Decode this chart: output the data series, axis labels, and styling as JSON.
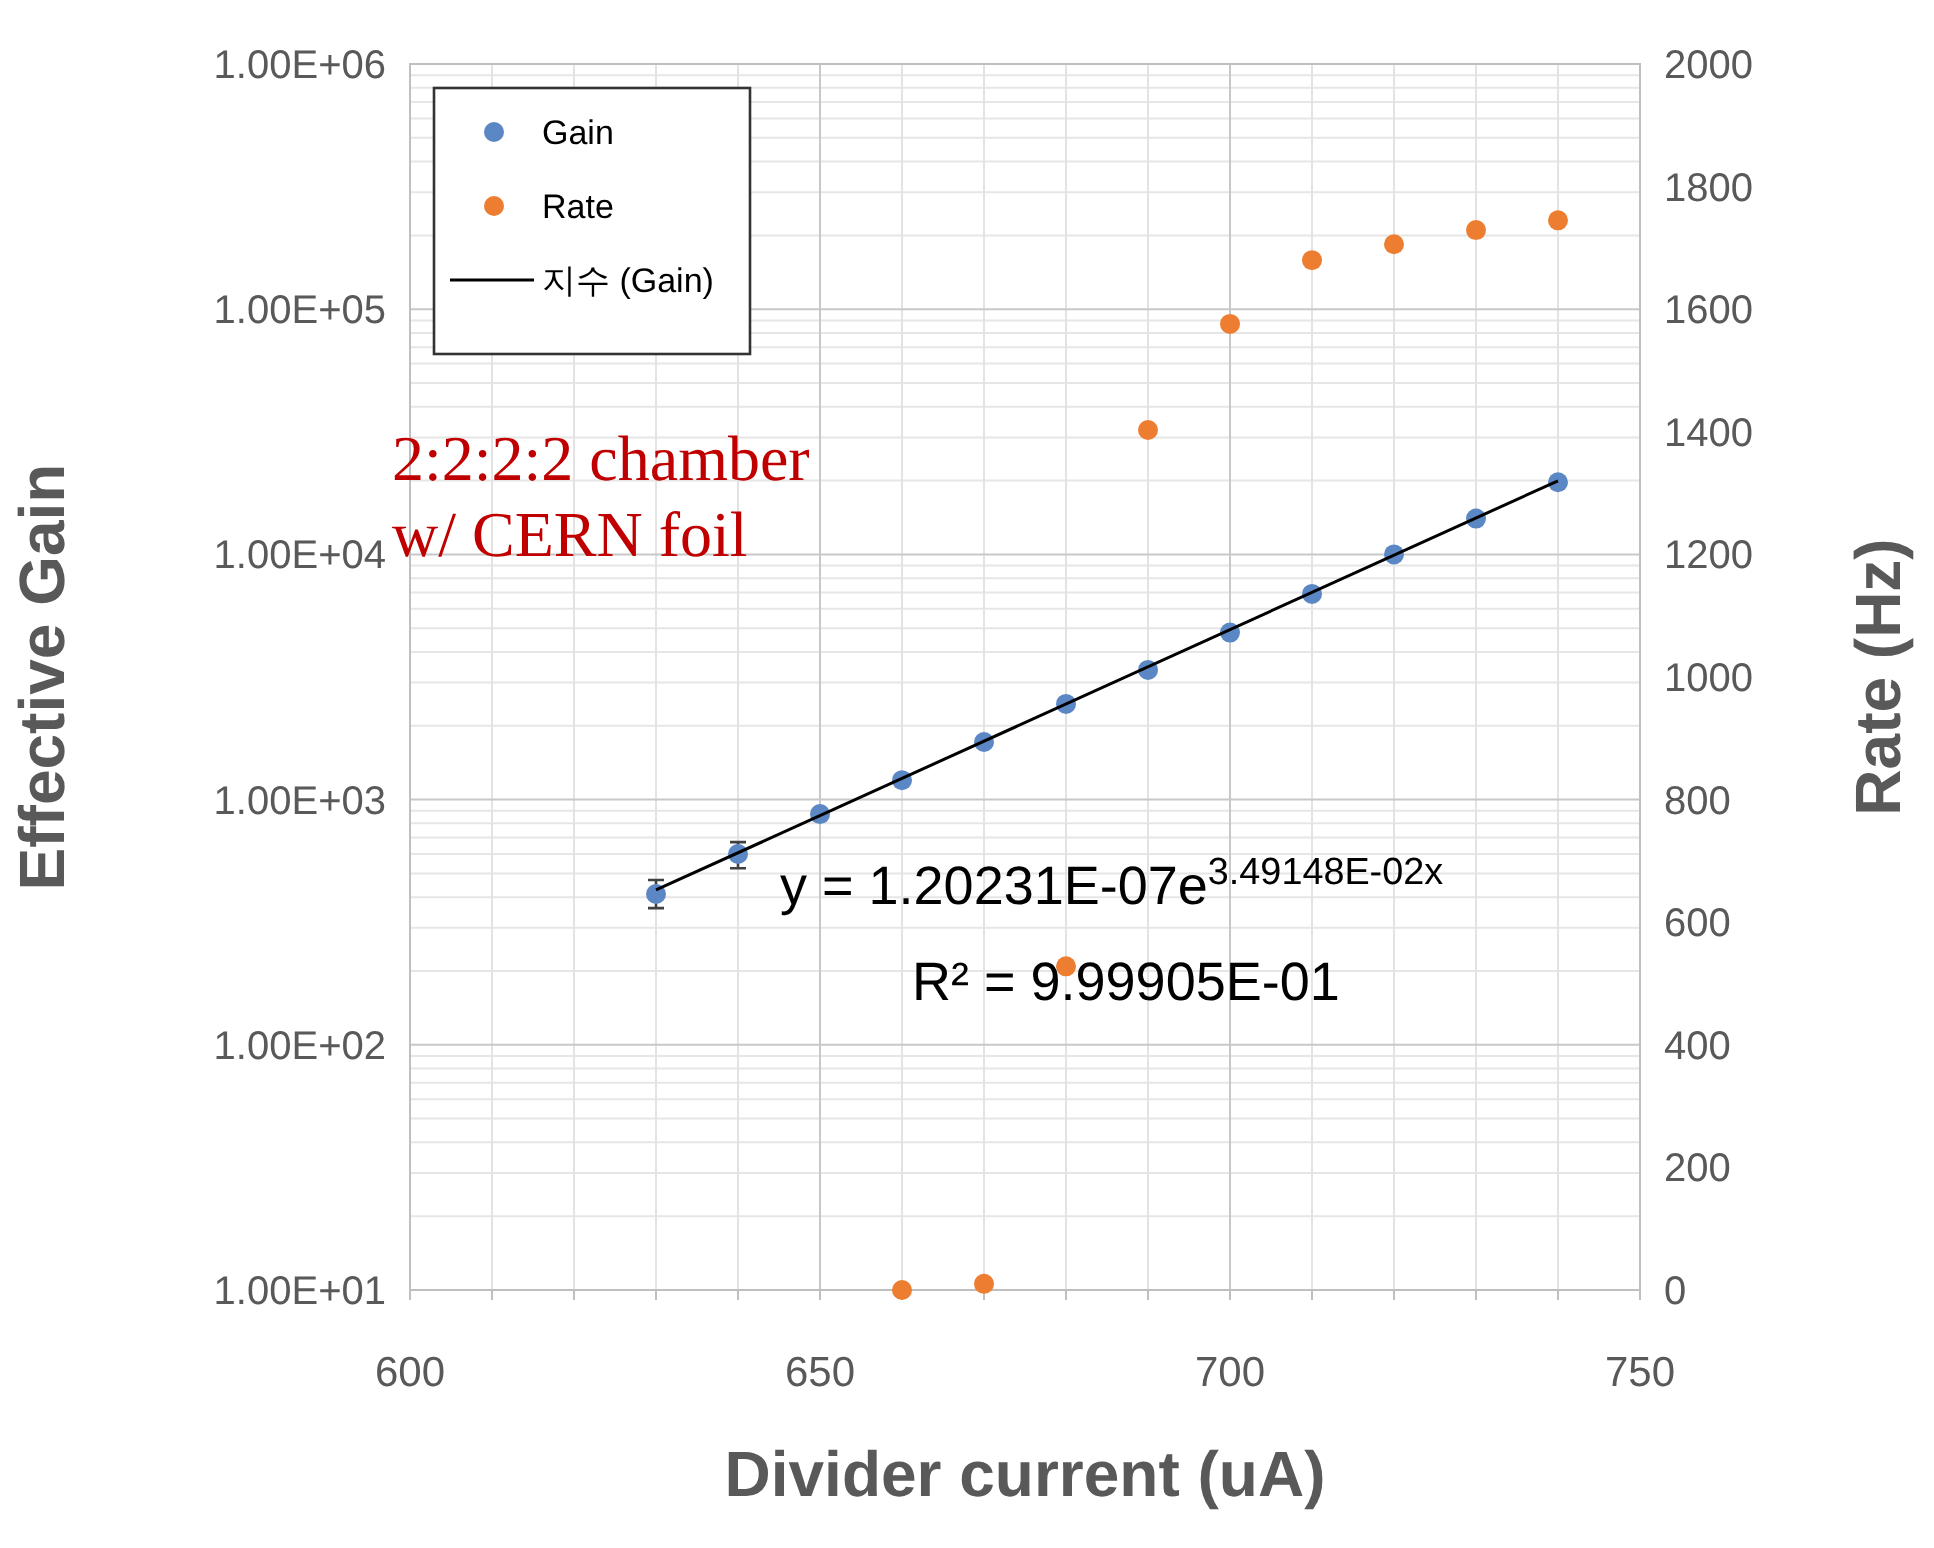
{
  "chart_data": {
    "type": "scatter",
    "xlabel": "Divider current (uA)",
    "ylabel": "Effective Gain",
    "y2label": "Rate (Hz)",
    "xlim": [
      600,
      750
    ],
    "xticks": [
      600,
      {
        "value": 610,
        "label": null
      },
      {
        "value": 620,
        "label": null
      },
      {
        "value": 630,
        "label": null
      },
      {
        "value": 640,
        "label": null
      },
      650,
      {
        "value": 660,
        "label": null
      },
      {
        "value": 670,
        "label": null
      },
      {
        "value": 680,
        "label": null
      },
      {
        "value": 690,
        "label": null
      },
      700,
      {
        "value": 710,
        "label": null
      },
      {
        "value": 720,
        "label": null
      },
      {
        "value": 730,
        "label": null
      },
      {
        "value": 740,
        "label": null
      },
      750
    ],
    "log": "y",
    "ylim": [
      10,
      1000000
    ],
    "yticks": [
      {
        "value": 10,
        "label": "1.00E+01"
      },
      {
        "value": 100,
        "label": "1.00E+02"
      },
      {
        "value": 1000,
        "label": "1.00E+03"
      },
      {
        "value": 10000,
        "label": "1.00E+04"
      },
      {
        "value": 100000,
        "label": "1.00E+05"
      },
      {
        "value": 1000000,
        "label": "1.00E+06"
      }
    ],
    "y2lim": [
      0,
      2000
    ],
    "y2ticks": [
      0,
      200,
      400,
      600,
      800,
      1000,
      1200,
      1400,
      1600,
      1800,
      2000
    ],
    "grid": true,
    "legend": "top left",
    "series": [
      {
        "name": "Gain",
        "marker": "circle",
        "color": "#5b87c5",
        "x": [
          630,
          640,
          650,
          660,
          670,
          680,
          690,
          700,
          710,
          720,
          730,
          740
        ],
        "values": [
          412,
          600,
          873,
          1200,
          1718,
          2456,
          3380,
          4800,
          6900,
          10000,
          14000,
          19700
        ],
        "errors": [
          [
            361,
            470
          ],
          [
            525,
            671
          ],
          null,
          null,
          null,
          null,
          null,
          null,
          null,
          null,
          null,
          null
        ]
      },
      {
        "name": "Rate",
        "marker": "circle",
        "axis": "y2",
        "color": "#ed7d31",
        "x": [
          660,
          670,
          680,
          690,
          700,
          710,
          720,
          730,
          740
        ],
        "values": [
          0,
          10,
          528,
          1403,
          1576,
          1680,
          1706,
          1729,
          1745
        ]
      },
      {
        "name": "지수 (Gain)",
        "type": "line",
        "color": "#000000",
        "x": [
          630,
          740
        ],
        "values": [
          428,
          19960
        ]
      }
    ],
    "annotations": [
      "2:2:2:2 chamber",
      "w/ CERN foil",
      "y = 1.20231E-07e$^{3.49148E-02x}$",
      "R² = 9.99905E-01"
    ]
  }
}
